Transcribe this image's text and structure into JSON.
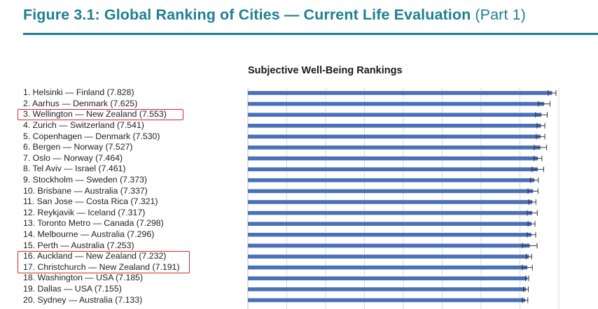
{
  "figure": {
    "title_bold": "Figure 3.1: Global Ranking of Cities — Current Life Evaluation",
    "title_part": "(Part 1)"
  },
  "chart_data": {
    "type": "bar",
    "orientation": "horizontal",
    "title": "Subjective Well-Being Rankings",
    "xlabel": "",
    "ylabel": "",
    "categories": [
      "1. Helsinki — Finland (7.828)",
      "2. Aarhus — Denmark (7.625)",
      "3. Wellington — New Zealand (7.553)",
      "4. Zurich — Switzerland (7.541)",
      "5. Copenhagen — Denmark (7.530)",
      "6. Bergen — Norway (7.527)",
      "7. Oslo — Norway (7.464)",
      "8. Tel Aviv — Israel (7.461)",
      "9. Stockholm — Sweden (7.373)",
      "10. Brisbane — Australia (7.337)",
      "11. San Jose — Costa Rica (7.321)",
      "12. Reykjavik — Iceland (7.317)",
      "13. Toronto Metro — Canada (7.298)",
      "14. Melbourne — Australia (7.296)",
      "15. Perth — Australia (7.253)",
      "16. Auckland — New Zealand (7.232)",
      "17. Christchurch — New Zealand (7.191)",
      "18. Washington — USA (7.185)",
      "19. Dallas — USA (7.155)",
      "20. Sydney — Australia (7.133)"
    ],
    "values": [
      7.828,
      7.625,
      7.553,
      7.541,
      7.53,
      7.527,
      7.464,
      7.461,
      7.373,
      7.337,
      7.321,
      7.317,
      7.298,
      7.296,
      7.253,
      7.232,
      7.191,
      7.185,
      7.155,
      7.133
    ],
    "error": [
      0.1,
      0.15,
      0.15,
      0.1,
      0.11,
      0.16,
      0.1,
      0.15,
      0.1,
      0.13,
      0.09,
      0.13,
      0.09,
      0.11,
      0.19,
      0.07,
      0.13,
      0.04,
      0.06,
      0.07
    ],
    "xlim": [
      0,
      8
    ],
    "grid": true,
    "legend": "none",
    "highlighted_groups": [
      [
        3
      ],
      [
        16,
        17
      ]
    ],
    "colors": {
      "bar": "#4a70b8",
      "error_bar": "#333333",
      "grid": "#d9d9d9",
      "highlight": "#d32a2a",
      "title": "#1f7f93"
    }
  }
}
